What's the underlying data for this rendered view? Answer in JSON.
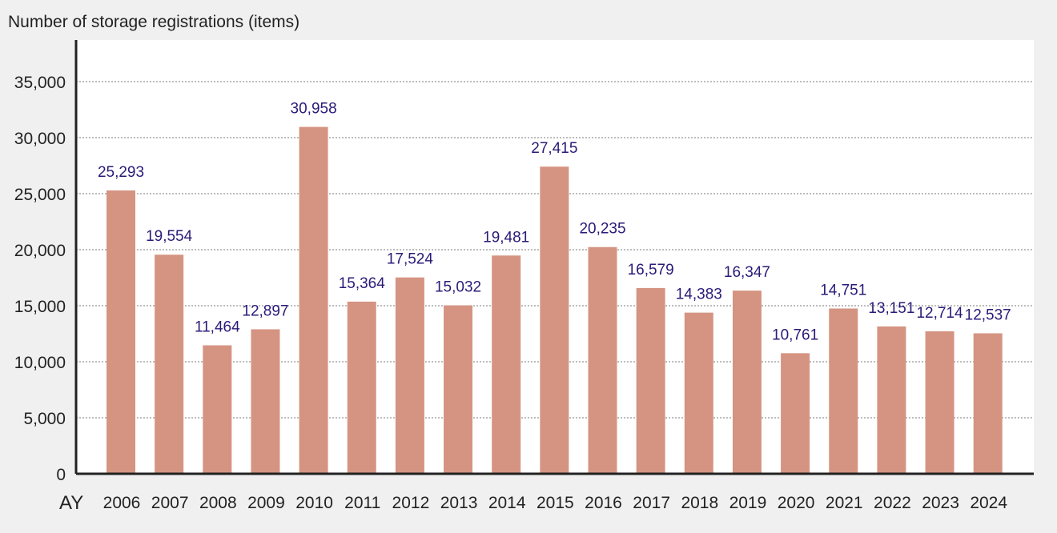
{
  "chart_data": {
    "type": "bar",
    "title": "",
    "ylabel": "Number of storage registrations (items)",
    "xlabel": "AY",
    "ylim": [
      0,
      37500
    ],
    "yticks": [
      0,
      5000,
      10000,
      15000,
      20000,
      25000,
      30000,
      35000
    ],
    "ytick_labels": [
      "0",
      "5,000",
      "10,000",
      "15,000",
      "20,000",
      "25,000",
      "30,000",
      "35,000"
    ],
    "grid": true,
    "legend": "none",
    "categories": [
      "2006",
      "2007",
      "2008",
      "2009",
      "2010",
      "2011",
      "2012",
      "2013",
      "2014",
      "2015",
      "2016",
      "2017",
      "2018",
      "2019",
      "2020",
      "2021",
      "2022",
      "2023",
      "2024"
    ],
    "values": [
      25293,
      19554,
      11464,
      12897,
      30958,
      15364,
      17524,
      15032,
      19481,
      27415,
      20235,
      16579,
      14383,
      16347,
      10761,
      14751,
      13151,
      12714,
      12537
    ],
    "data_labels": [
      "25,293",
      "19,554",
      "11,464",
      "12,897",
      "30,958",
      "15,364",
      "17,524",
      "15,032",
      "19,481",
      "27,415",
      "20,235",
      "16,579",
      "14,383",
      "16,347",
      "10,761",
      "14,751",
      "13,151",
      "12,714",
      "12,537"
    ],
    "colors": {
      "bar": "#d59482",
      "label": "#2a1a78",
      "background": "#f0f0f0",
      "plot": "#ffffff"
    }
  }
}
